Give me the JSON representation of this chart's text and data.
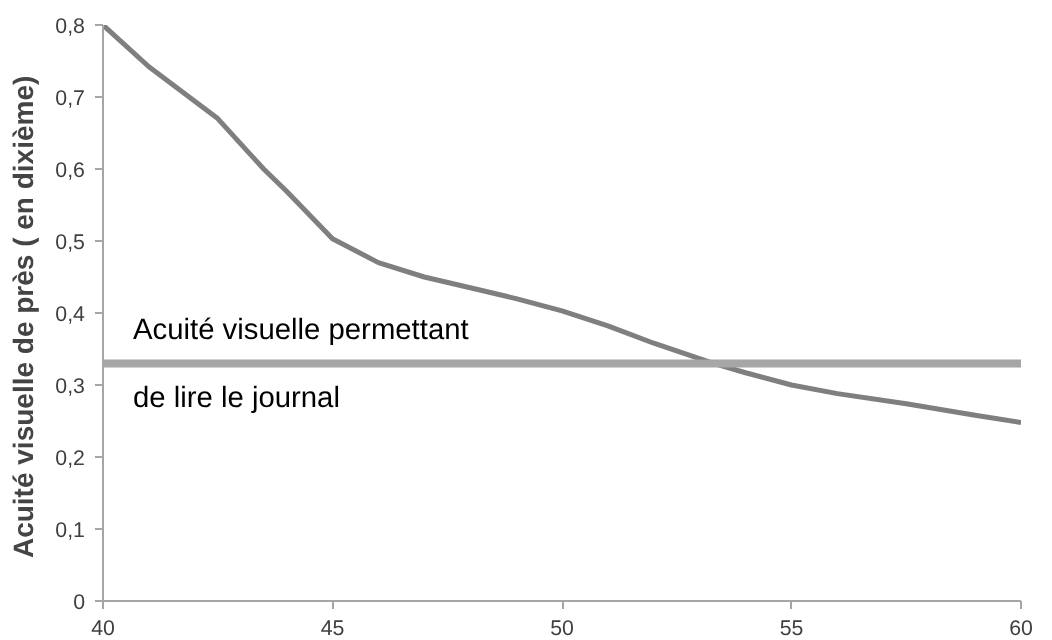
{
  "chart_data": {
    "type": "line",
    "ylabel": "Acuité visuelle de près  ( en dixième)",
    "x": [
      40,
      41,
      42.5,
      43.5,
      44,
      45,
      46,
      47,
      48,
      49,
      50,
      51,
      52,
      53.3,
      54,
      55,
      56,
      57.5,
      59,
      60
    ],
    "series": [
      {
        "color": "#7f7f7f",
        "values": [
          0.8,
          0.742,
          0.67,
          0.6,
          0.569,
          0.503,
          0.47,
          0.45,
          0.435,
          0.42,
          0.403,
          0.382,
          0.358,
          0.33,
          0.317,
          0.3,
          0.288,
          0.274,
          0.258,
          0.248
        ]
      }
    ],
    "ref_lines": [
      {
        "axis": "y",
        "value": 0.33,
        "label": "Acuité visuelle permettant\nde lire le journal",
        "color": "#a6a6a6"
      }
    ],
    "xlim": [
      40,
      60
    ],
    "xticks": [
      40,
      45,
      50,
      55,
      60
    ],
    "ylim": [
      0,
      0.8
    ],
    "yticks": [
      {
        "value": 0,
        "label": "0"
      },
      {
        "value": 0.1,
        "label": "0,1"
      },
      {
        "value": 0.2,
        "label": "0,2"
      },
      {
        "value": 0.3,
        "label": "0,3"
      },
      {
        "value": 0.4,
        "label": "0,4"
      },
      {
        "value": 0.5,
        "label": "0,5"
      },
      {
        "value": 0.6,
        "label": "0,6"
      },
      {
        "value": 0.7,
        "label": "0,7"
      },
      {
        "value": 0.8,
        "label": "0,8"
      }
    ],
    "grid": false,
    "marker": "none",
    "line_style": "solid"
  }
}
